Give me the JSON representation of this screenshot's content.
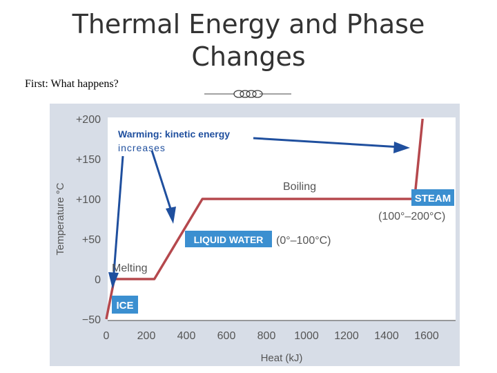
{
  "slide": {
    "title_line1": "Thermal Energy and Phase",
    "title_line2": "Changes",
    "subtitle": "First: What happens?"
  },
  "chart_data": {
    "type": "line",
    "xlabel": "Heat (kJ)",
    "ylabel": "Temperature °C",
    "xlim": [
      0,
      1750
    ],
    "ylim": [
      -50,
      200
    ],
    "x_ticks": [
      "0",
      "200",
      "400",
      "600",
      "800",
      "1000",
      "1200",
      "1400",
      "1600"
    ],
    "y_ticks": [
      "+200",
      "+150",
      "+100",
      "+50",
      "0",
      "−50"
    ],
    "series": [
      {
        "points": [
          [
            0,
            -50
          ],
          [
            40,
            0
          ],
          [
            240,
            0
          ],
          [
            480,
            100
          ],
          [
            1540,
            100
          ],
          [
            1580,
            200
          ]
        ],
        "color": "#b5484d"
      }
    ],
    "annotations": {
      "warming_line1": "Warming: kinetic energy",
      "warming_line2": "increases",
      "boiling": "Boiling",
      "melting": "Melting",
      "steam": "STEAM",
      "steam_range": "(100°–200°C)",
      "liquid": "LIQUID WATER",
      "liquid_range": "(0°–100°C)",
      "ice": "ICE"
    },
    "colors": {
      "curve": "#b5484d",
      "arrow": "#1f4f9e",
      "label_box": "#3b8fd0",
      "axis_text": "#555555"
    }
  }
}
